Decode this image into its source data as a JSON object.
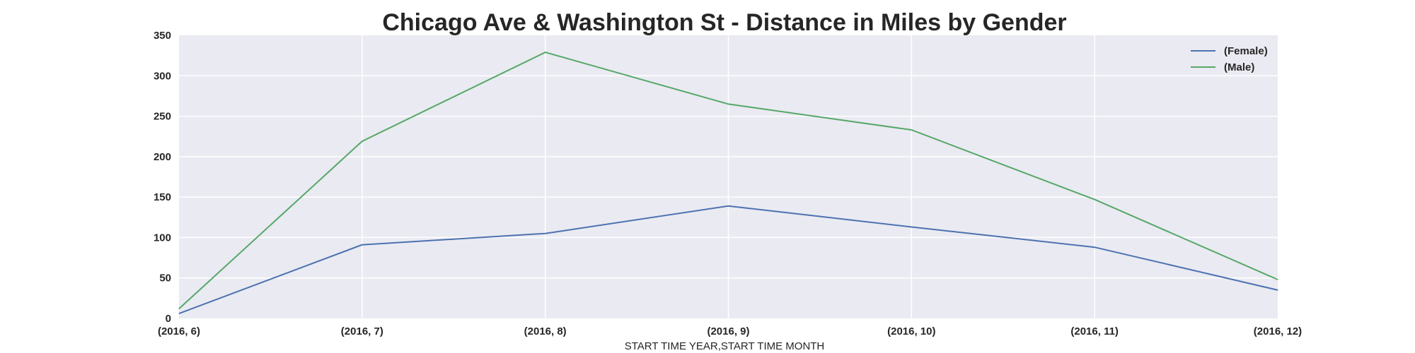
{
  "chart_data": {
    "type": "line",
    "title": "Chicago Ave & Washington St - Distance in Miles by Gender",
    "xlabel": "START TIME YEAR,START TIME MONTH",
    "ylabel": "",
    "categories": [
      "(2016, 6)",
      "(2016, 7)",
      "(2016, 8)",
      "(2016, 9)",
      "(2016, 10)",
      "(2016, 11)",
      "(2016, 12)"
    ],
    "ylim": [
      0,
      350
    ],
    "yticks": [
      "0",
      "50",
      "100",
      "150",
      "200",
      "250",
      "300",
      "350"
    ],
    "grid": true,
    "legend_position": "top-right",
    "series": [
      {
        "name": "(Female)",
        "color": "#4c72b0",
        "values": [
          6,
          91,
          105,
          139,
          113,
          88,
          35
        ]
      },
      {
        "name": "(Male)",
        "color": "#55a868",
        "values": [
          12,
          219,
          329,
          265,
          233,
          147,
          48
        ]
      }
    ]
  }
}
